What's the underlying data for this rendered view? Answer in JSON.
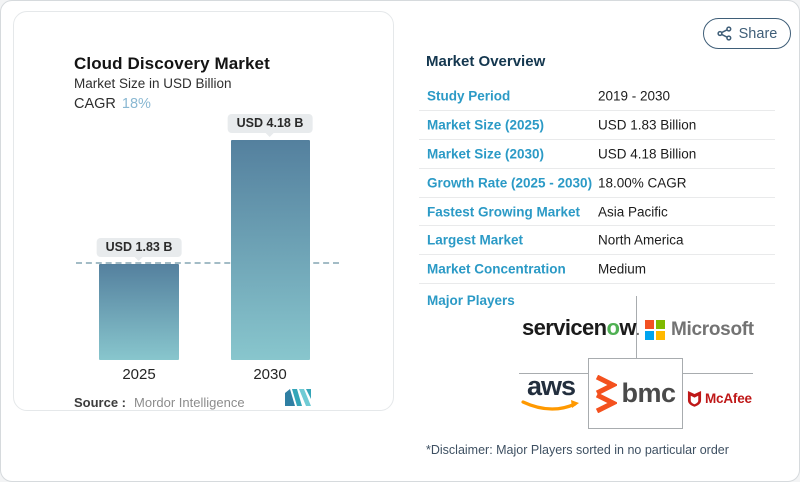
{
  "share": {
    "label": "Share",
    "icon": "share-icon"
  },
  "chart_card": {
    "title": "Cloud Discovery Market",
    "subtitle": "Market Size in USD Billion",
    "cagr_label": "CAGR",
    "cagr_value": "18%",
    "source_label": "Source :",
    "source_value": "Mordor Intelligence",
    "logo": "mordor-intelligence-logo"
  },
  "chart_data": {
    "type": "bar",
    "title": "Cloud Discovery Market",
    "ylabel": "Market Size in USD Billion",
    "categories": [
      "2025",
      "2030"
    ],
    "values": [
      1.83,
      4.18
    ],
    "value_labels": [
      "USD 1.83 B",
      "USD 4.18 B"
    ],
    "cagr": "18%",
    "dashed_line_at": 1.83,
    "bar_gradient_top": "#54809e",
    "bar_gradient_bottom": "#88c6cd",
    "grid": false,
    "legend": false
  },
  "overview": {
    "heading": "Market Overview",
    "rows": [
      {
        "label": "Study Period",
        "value": "2019 - 2030"
      },
      {
        "label": "Market Size (2025)",
        "value": "USD 1.83 Billion"
      },
      {
        "label": "Market Size (2030)",
        "value": "USD 4.18 Billion"
      },
      {
        "label": "Growth Rate (2025 - 2030)",
        "value": "18.00% CAGR"
      },
      {
        "label": "Fastest Growing Market",
        "value": "Asia Pacific"
      },
      {
        "label": "Largest Market",
        "value": "North America"
      },
      {
        "label": "Market Concentration",
        "value": "Medium"
      }
    ],
    "major_players_label": "Major Players",
    "players": {
      "servicenow_pre": "servicen",
      "servicenow_o": "o",
      "servicenow_post": "w",
      "servicenow_dot": ".",
      "microsoft": "Microsoft",
      "aws": "aws",
      "bmc": "bmc",
      "mcafee": "McAfee"
    },
    "disclaimer": "*Disclaimer: Major Players sorted in no particular order"
  },
  "colors": {
    "accent_blue": "#2b9ac6",
    "heading_navy": "#14374f",
    "share_slate": "#3f5e78",
    "cagr_light_blue": "#8ab8d2",
    "label_chip_bg": "#e8ebed",
    "dash_line": "#a3bcc6",
    "ms_red": "#f25022",
    "ms_green": "#7fba00",
    "ms_blue": "#00a4ef",
    "ms_yellow": "#ffb900",
    "aws_orange": "#ff9900",
    "bmc_orange": "#f4511e",
    "mcafee_red": "#bf1818",
    "servicenow_green": "#4fb053",
    "mordor_teal": "#2f7fa3"
  }
}
